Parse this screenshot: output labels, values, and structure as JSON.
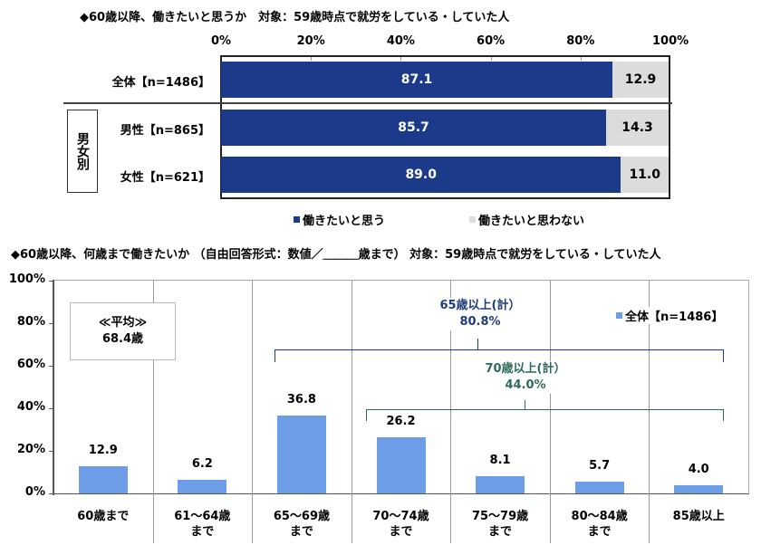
{
  "top_chart": {
    "title": "◆60歳以降、働きたいと思うか　対象：59歳時点で就労をしている・していた人",
    "x_ticks": [
      "0%",
      "20%",
      "40%",
      "60%",
      "80%",
      "100%"
    ],
    "group_box_label": "男女別",
    "rows": [
      {
        "label": "全体【n=1486】",
        "yes": "87.1",
        "no": "12.9"
      },
      {
        "label": "男性【n=865】",
        "yes": "85.7",
        "no": "14.3"
      },
      {
        "label": "女性【n=621】",
        "yes": "89.0",
        "no": "11.0"
      }
    ],
    "legend": [
      {
        "label": "働きたいと思う",
        "color": "#1b3a8a"
      },
      {
        "label": "働きたいと思わない",
        "color": "#dcdcdc"
      }
    ]
  },
  "bottom_chart": {
    "title": "◆60歳以降、何歳まで働きたいか （自由回答形式：数値／＿＿＿歳まで） 対象：59歳時点で就労をしている・していた人",
    "y_ticks": [
      "100%",
      "80%",
      "60%",
      "40%",
      "20%",
      "0%"
    ],
    "average_box": {
      "line1": "≪平均≫",
      "line2": "68.4歳"
    },
    "legend": {
      "label": "全体【n=1486】",
      "color": "#6e9de8"
    },
    "bracket_65": {
      "line1": "65歳以上(計）",
      "line2": "80.8%",
      "color": "#1f3c7a"
    },
    "bracket_70": {
      "line1": "70歳以上(計）",
      "line2": "44.0%",
      "color": "#2e6b5a"
    },
    "categories": [
      {
        "line1": "60歳まで",
        "line2": "",
        "value": "12.9"
      },
      {
        "line1": "61～64歳",
        "line2": "まで",
        "value": "6.2"
      },
      {
        "line1": "65～69歳",
        "line2": "まで",
        "value": "36.8"
      },
      {
        "line1": "70～74歳",
        "line2": "まで",
        "value": "26.2"
      },
      {
        "line1": "75～79歳",
        "line2": "まで",
        "value": "8.1"
      },
      {
        "line1": "80～84歳",
        "line2": "まで",
        "value": "5.7"
      },
      {
        "line1": "85歳以上",
        "line2": "",
        "value": "4.0"
      }
    ]
  },
  "chart_data": [
    {
      "type": "bar",
      "orientation": "horizontal-stacked-100",
      "title": "◆60歳以降、働きたいと思うか　対象：59歳時点で就労をしている・していた人",
      "categories": [
        "全体【n=1486】",
        "男性【n=865】",
        "女性【n=621】"
      ],
      "series": [
        {
          "name": "働きたいと思う",
          "values": [
            87.1,
            85.7,
            89.0
          ]
        },
        {
          "name": "働きたいと思わない",
          "values": [
            12.9,
            14.3,
            11.0
          ]
        }
      ],
      "xlim": [
        0,
        100
      ],
      "xticks": [
        "0%",
        "20%",
        "40%",
        "60%",
        "80%",
        "100%"
      ],
      "legend_position": "bottom",
      "grid": false
    },
    {
      "type": "bar",
      "title": "◆60歳以降、何歳まで働きたいか （自由回答形式：数値／＿＿＿歳まで） 対象：59歳時点で就労をしている・していた人",
      "categories": [
        "60歳まで",
        "61～64歳まで",
        "65～69歳まで",
        "70～74歳まで",
        "75～79歳まで",
        "80～84歳まで",
        "85歳以上"
      ],
      "series": [
        {
          "name": "全体【n=1486】",
          "values": [
            12.9,
            6.2,
            36.8,
            26.2,
            8.1,
            5.7,
            4.0
          ]
        }
      ],
      "ylim": [
        0,
        100
      ],
      "yticks": [
        "0%",
        "20%",
        "40%",
        "60%",
        "80%",
        "100%"
      ],
      "annotations": [
        "≪平均≫ 68.4歳",
        "65歳以上(計） 80.8%",
        "70歳以上(計） 44.0%"
      ],
      "legend_position": "top-right",
      "grid": "vertical category separators"
    }
  ]
}
